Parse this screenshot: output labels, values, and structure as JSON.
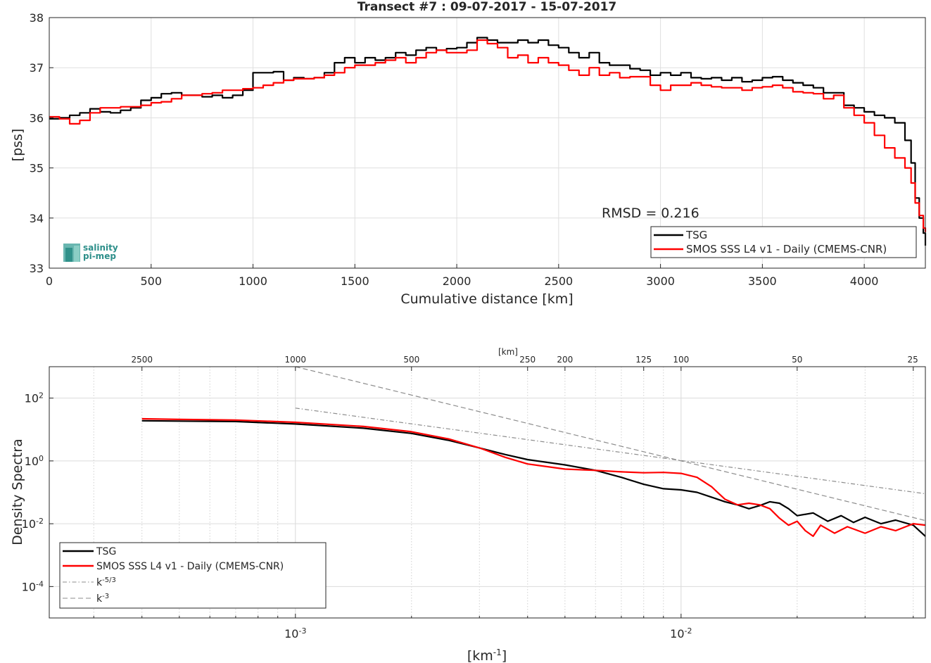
{
  "logo": {
    "line1": "salinity",
    "line2": "pi-mep"
  },
  "chart_data": [
    {
      "type": "line",
      "title": "Transect #7 : 09-07-2017 - 15-07-2017",
      "xlabel": "Cumulative distance [km]",
      "ylabel": "[pss]",
      "xlim": [
        0,
        4300
      ],
      "ylim": [
        33,
        38
      ],
      "xticks": [
        "0",
        "500",
        "1000",
        "1500",
        "2000",
        "2500",
        "3000",
        "3500",
        "4000"
      ],
      "yticks": [
        "33",
        "34",
        "35",
        "36",
        "37",
        "38"
      ],
      "grid": true,
      "legend_position": "bottom-right",
      "annotation": "RMSD = 0.216",
      "series": [
        {
          "name": "TSG",
          "color": "#000000",
          "x": [
            0,
            50,
            100,
            150,
            200,
            250,
            300,
            350,
            400,
            450,
            500,
            550,
            600,
            650,
            700,
            750,
            800,
            850,
            900,
            950,
            1000,
            1050,
            1100,
            1150,
            1200,
            1250,
            1300,
            1350,
            1400,
            1450,
            1500,
            1550,
            1600,
            1650,
            1700,
            1750,
            1800,
            1850,
            1900,
            1950,
            2000,
            2050,
            2100,
            2150,
            2200,
            2250,
            2300,
            2350,
            2400,
            2450,
            2500,
            2550,
            2600,
            2650,
            2700,
            2750,
            2800,
            2850,
            2900,
            2950,
            3000,
            3050,
            3100,
            3150,
            3200,
            3250,
            3300,
            3350,
            3400,
            3450,
            3500,
            3550,
            3600,
            3650,
            3700,
            3750,
            3800,
            3850,
            3900,
            3950,
            4000,
            4050,
            4100,
            4150,
            4200,
            4230,
            4250,
            4270,
            4290,
            4300
          ],
          "y": [
            35.98,
            36.0,
            36.05,
            36.1,
            36.18,
            36.12,
            36.1,
            36.15,
            36.2,
            36.35,
            36.4,
            36.48,
            36.5,
            36.45,
            36.45,
            36.42,
            36.45,
            36.4,
            36.45,
            36.55,
            36.9,
            36.9,
            36.92,
            36.75,
            36.8,
            36.78,
            36.8,
            36.9,
            37.1,
            37.2,
            37.1,
            37.2,
            37.15,
            37.2,
            37.3,
            37.25,
            37.35,
            37.4,
            37.35,
            37.38,
            37.4,
            37.5,
            37.6,
            37.55,
            37.5,
            37.5,
            37.55,
            37.5,
            37.55,
            37.45,
            37.4,
            37.3,
            37.2,
            37.3,
            37.1,
            37.05,
            37.05,
            36.98,
            36.95,
            36.85,
            36.9,
            36.85,
            36.9,
            36.8,
            36.78,
            36.8,
            36.75,
            36.8,
            36.72,
            36.75,
            36.8,
            36.82,
            36.75,
            36.7,
            36.65,
            36.6,
            36.5,
            36.5,
            36.25,
            36.2,
            36.12,
            36.05,
            36.0,
            35.9,
            35.55,
            35.1,
            34.4,
            34.0,
            33.7,
            33.45
          ]
        },
        {
          "name": "SMOS SSS L4 v1 - Daily (CMEMS-CNR)",
          "color": "#ff0000",
          "x": [
            0,
            50,
            100,
            150,
            200,
            250,
            300,
            350,
            400,
            450,
            500,
            550,
            600,
            650,
            700,
            750,
            800,
            850,
            900,
            950,
            1000,
            1050,
            1100,
            1150,
            1200,
            1250,
            1300,
            1350,
            1400,
            1450,
            1500,
            1550,
            1600,
            1650,
            1700,
            1750,
            1800,
            1850,
            1900,
            1950,
            2000,
            2050,
            2100,
            2150,
            2200,
            2250,
            2300,
            2350,
            2400,
            2450,
            2500,
            2550,
            2600,
            2650,
            2700,
            2750,
            2800,
            2850,
            2900,
            2950,
            3000,
            3050,
            3100,
            3150,
            3200,
            3250,
            3300,
            3350,
            3400,
            3450,
            3500,
            3550,
            3600,
            3650,
            3700,
            3750,
            3800,
            3850,
            3900,
            3950,
            4000,
            4050,
            4100,
            4150,
            4200,
            4230,
            4250,
            4270,
            4290,
            4300
          ],
          "y": [
            36.02,
            35.98,
            35.88,
            35.95,
            36.1,
            36.2,
            36.2,
            36.22,
            36.22,
            36.25,
            36.3,
            36.32,
            36.38,
            36.45,
            36.45,
            36.48,
            36.5,
            36.55,
            36.55,
            36.58,
            36.6,
            36.65,
            36.7,
            36.75,
            36.78,
            36.78,
            36.8,
            36.85,
            36.9,
            37.0,
            37.05,
            37.05,
            37.1,
            37.15,
            37.2,
            37.1,
            37.2,
            37.3,
            37.35,
            37.3,
            37.3,
            37.35,
            37.55,
            37.48,
            37.4,
            37.2,
            37.25,
            37.1,
            37.2,
            37.1,
            37.05,
            36.95,
            36.85,
            37.0,
            36.85,
            36.9,
            36.8,
            36.82,
            36.82,
            36.65,
            36.55,
            36.65,
            36.65,
            36.7,
            36.65,
            36.62,
            36.6,
            36.6,
            36.55,
            36.6,
            36.62,
            36.65,
            36.6,
            36.52,
            36.5,
            36.48,
            36.38,
            36.45,
            36.2,
            36.05,
            35.9,
            35.65,
            35.4,
            35.2,
            35.0,
            34.7,
            34.3,
            34.05,
            33.8,
            33.72
          ]
        }
      ]
    },
    {
      "type": "line",
      "title": "",
      "xlabel": "[km",
      "xlabel_sup": "-1",
      "xlabel_tail": "]",
      "ylabel": "Density Spectra",
      "x_scale": "log",
      "y_scale": "log",
      "xlim": [
        0.00023,
        0.043
      ],
      "ylim": [
        1e-05,
        1000
      ],
      "xticks": [
        {
          "value": 0.001,
          "base": "10",
          "exp": "-3"
        },
        {
          "value": 0.01,
          "base": "10",
          "exp": "-2"
        }
      ],
      "yticks": [
        {
          "value": 0.0001,
          "base": "10",
          "exp": "-4"
        },
        {
          "value": 0.01,
          "base": "10",
          "exp": "-2"
        },
        {
          "value": 1,
          "base": "10",
          "exp": "0"
        },
        {
          "value": 100,
          "base": "10",
          "exp": "2"
        }
      ],
      "top_axis_label": "[km]",
      "top_ticks": [
        "2500",
        "1000",
        "500",
        "250",
        "200",
        "125",
        "100",
        "50",
        "25"
      ],
      "grid": true,
      "legend_position": "bottom-left",
      "series": [
        {
          "name": "TSG",
          "color": "#000000",
          "x": [
            0.0004,
            0.0005,
            0.0007,
            0.001,
            0.0015,
            0.002,
            0.0025,
            0.003,
            0.0035,
            0.004,
            0.005,
            0.006,
            0.007,
            0.008,
            0.009,
            0.01,
            0.011,
            0.012,
            0.013,
            0.014,
            0.015,
            0.016,
            0.017,
            0.018,
            0.019,
            0.02,
            0.022,
            0.024,
            0.026,
            0.028,
            0.03,
            0.033,
            0.036,
            0.04,
            0.043
          ],
          "y": [
            19,
            18.5,
            18,
            15,
            11,
            7.5,
            4.5,
            2.6,
            1.6,
            1.1,
            0.75,
            0.5,
            0.3,
            0.18,
            0.13,
            0.12,
            0.1,
            0.07,
            0.05,
            0.04,
            0.03,
            0.038,
            0.05,
            0.045,
            0.03,
            0.018,
            0.022,
            0.012,
            0.018,
            0.011,
            0.016,
            0.01,
            0.013,
            0.009,
            0.004
          ]
        },
        {
          "name": "SMOS SSS L4 v1 - Daily (CMEMS-CNR)",
          "color": "#ff0000",
          "x": [
            0.0004,
            0.0005,
            0.0007,
            0.001,
            0.0015,
            0.002,
            0.0025,
            0.003,
            0.0035,
            0.004,
            0.005,
            0.006,
            0.007,
            0.008,
            0.009,
            0.01,
            0.011,
            0.012,
            0.013,
            0.014,
            0.015,
            0.016,
            0.017,
            0.018,
            0.019,
            0.02,
            0.021,
            0.022,
            0.023,
            0.025,
            0.027,
            0.03,
            0.033,
            0.036,
            0.04,
            0.043
          ],
          "y": [
            22,
            21,
            20,
            17,
            12.5,
            8.5,
            5,
            2.6,
            1.3,
            0.8,
            0.55,
            0.5,
            0.45,
            0.42,
            0.43,
            0.4,
            0.3,
            0.15,
            0.06,
            0.04,
            0.045,
            0.04,
            0.03,
            0.015,
            0.009,
            0.012,
            0.006,
            0.004,
            0.009,
            0.005,
            0.008,
            0.005,
            0.008,
            0.006,
            0.01,
            0.009
          ]
        },
        {
          "name": "k-5/3",
          "color": "#8c8c8c",
          "dash": "dashdot",
          "x": [
            0.001,
            0.043
          ],
          "y": [
            48,
            0.09
          ]
        },
        {
          "name": "k-3",
          "color": "#8c8c8c",
          "dash": "dashed",
          "x": [
            0.001,
            0.043
          ],
          "y": [
            1000,
            0.0126
          ]
        }
      ]
    }
  ]
}
